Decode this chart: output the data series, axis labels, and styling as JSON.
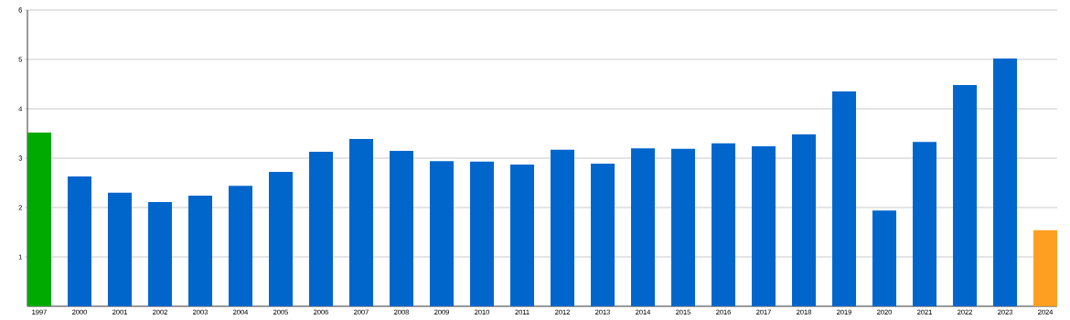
{
  "chart_data": {
    "type": "bar",
    "categories": [
      "1997",
      "2000",
      "2001",
      "2002",
      "2003",
      "2004",
      "2005",
      "2006",
      "2007",
      "2008",
      "2009",
      "2010",
      "2011",
      "2012",
      "2013",
      "2014",
      "2015",
      "2016",
      "2017",
      "2018",
      "2019",
      "2020",
      "2021",
      "2022",
      "2023",
      "2024"
    ],
    "values": [
      3.52,
      2.63,
      2.3,
      2.11,
      2.24,
      2.44,
      2.72,
      3.13,
      3.39,
      3.15,
      2.94,
      2.93,
      2.87,
      3.17,
      2.89,
      3.2,
      3.19,
      3.3,
      3.24,
      3.48,
      4.35,
      1.94,
      3.33,
      4.48,
      5.02,
      1.54
    ],
    "colors": [
      "#00aa00",
      "#0066cc",
      "#0066cc",
      "#0066cc",
      "#0066cc",
      "#0066cc",
      "#0066cc",
      "#0066cc",
      "#0066cc",
      "#0066cc",
      "#0066cc",
      "#0066cc",
      "#0066cc",
      "#0066cc",
      "#0066cc",
      "#0066cc",
      "#0066cc",
      "#0066cc",
      "#0066cc",
      "#0066cc",
      "#0066cc",
      "#0066cc",
      "#0066cc",
      "#0066cc",
      "#0066cc",
      "#ff9f22"
    ],
    "ylim": [
      0,
      6
    ],
    "yticks": [
      1,
      2,
      3,
      4,
      5,
      6
    ],
    "grid": "y"
  }
}
